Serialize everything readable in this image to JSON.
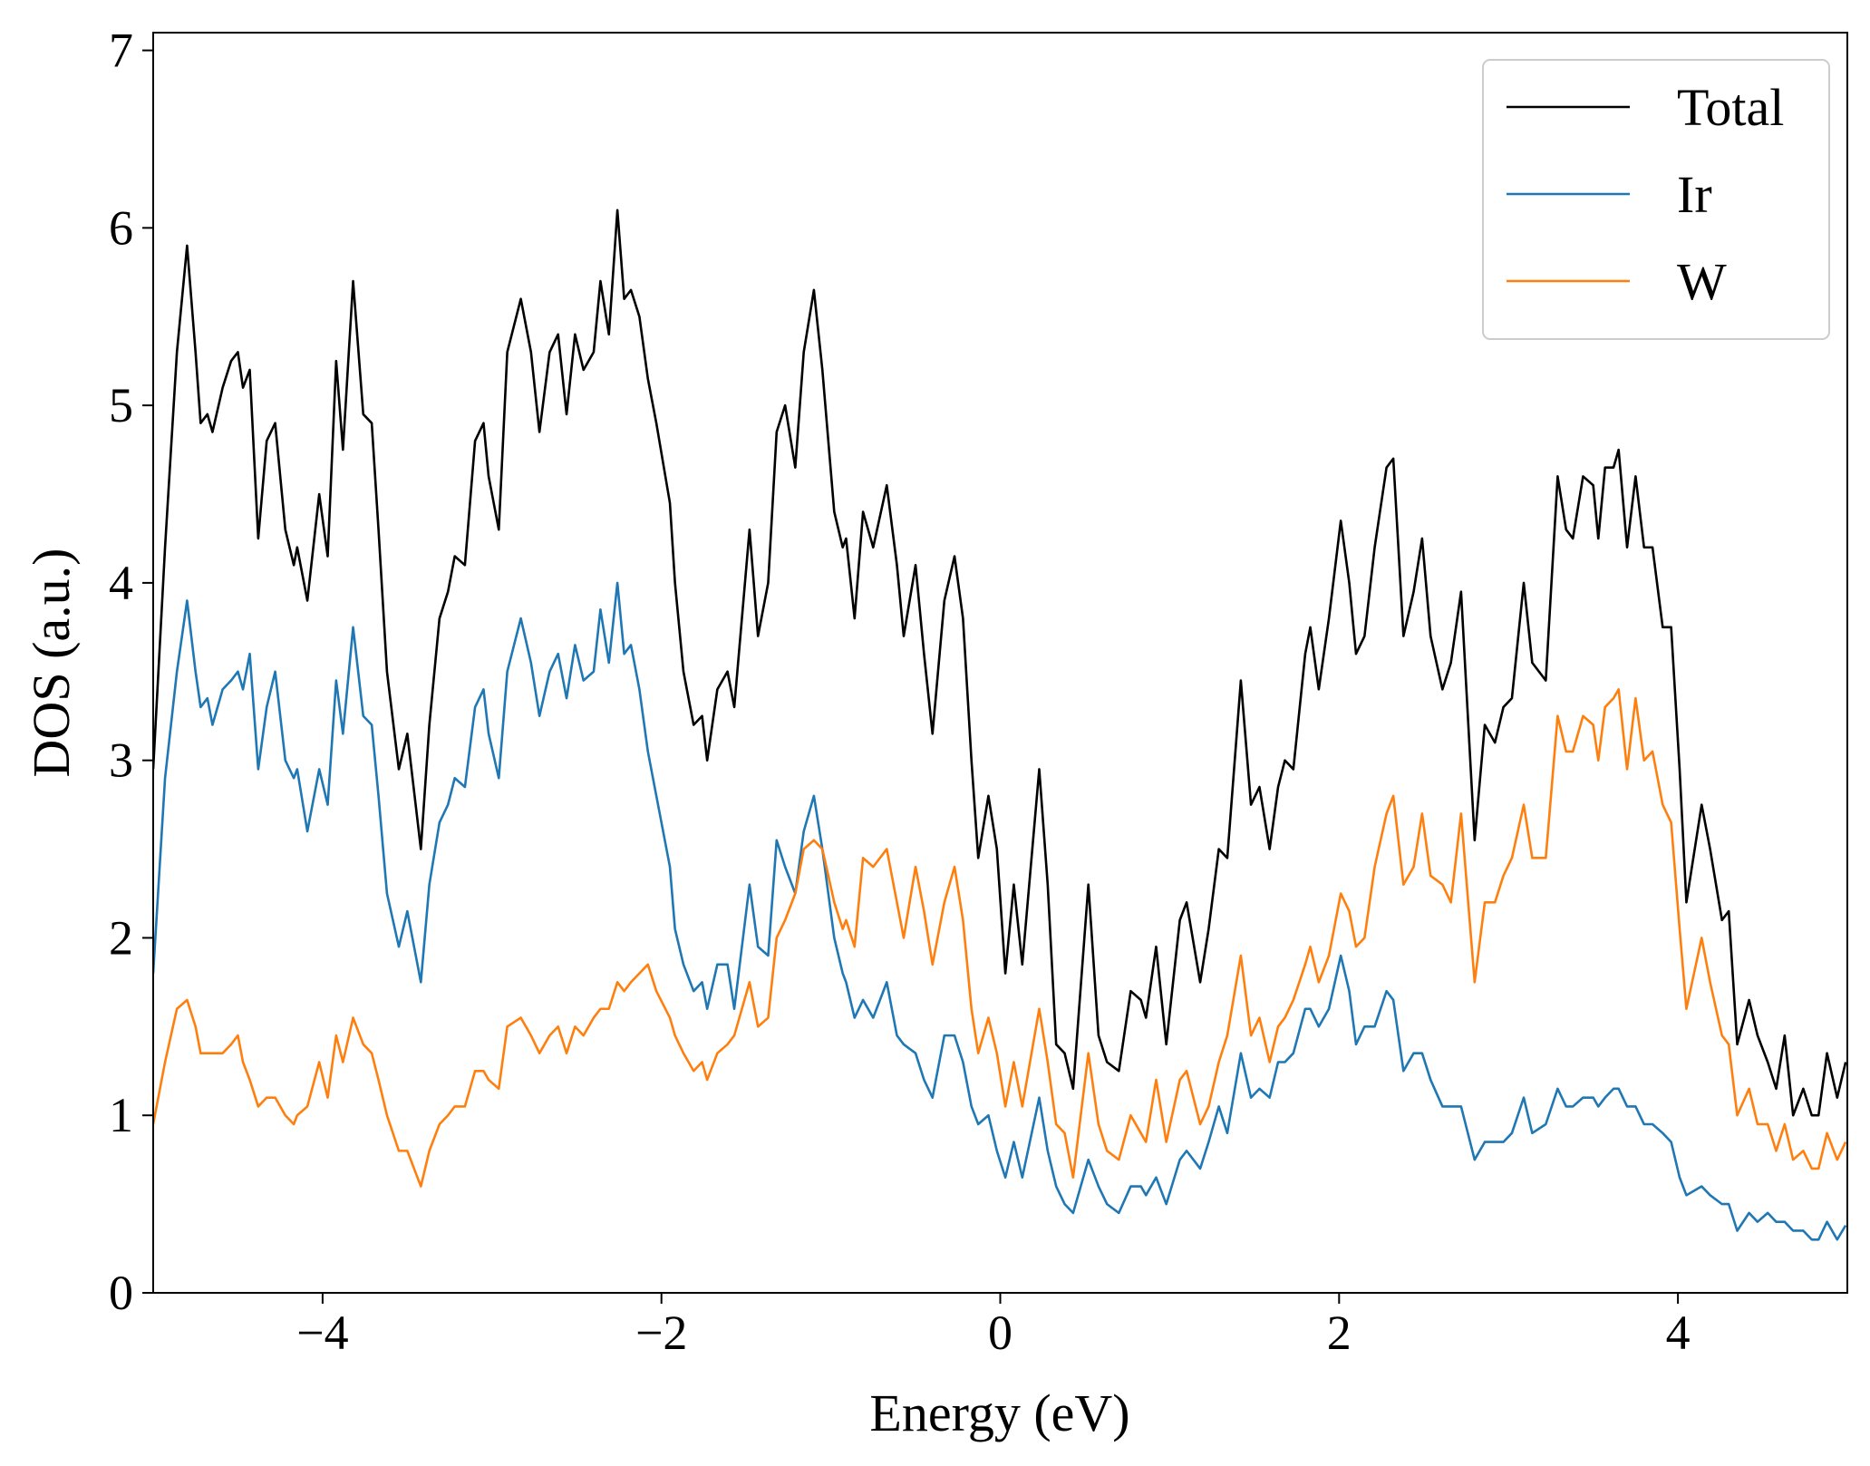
{
  "chart_data": {
    "type": "line",
    "x_label": "Energy (eV)",
    "y_label": "DOS (a.u.)",
    "xlim": [
      -5,
      5
    ],
    "ylim": [
      0,
      7.1
    ],
    "xticks": [
      {
        "value": -4,
        "label": "−4"
      },
      {
        "value": -2,
        "label": "−2"
      },
      0,
      2,
      4
    ],
    "yticks": [
      0,
      1,
      2,
      3,
      4,
      5,
      6,
      7
    ],
    "legend": "upper right",
    "grid": false,
    "x": [
      -5.0,
      -4.93,
      -4.86,
      -4.8,
      -4.75,
      -4.72,
      -4.68,
      -4.65,
      -4.59,
      -4.54,
      -4.5,
      -4.47,
      -4.43,
      -4.38,
      -4.33,
      -4.28,
      -4.22,
      -4.17,
      -4.15,
      -4.09,
      -4.02,
      -3.97,
      -3.92,
      -3.88,
      -3.82,
      -3.76,
      -3.71,
      -3.67,
      -3.62,
      -3.55,
      -3.5,
      -3.42,
      -3.37,
      -3.31,
      -3.26,
      -3.22,
      -3.16,
      -3.1,
      -3.05,
      -3.02,
      -2.96,
      -2.91,
      -2.83,
      -2.77,
      -2.72,
      -2.66,
      -2.61,
      -2.56,
      -2.51,
      -2.46,
      -2.4,
      -2.36,
      -2.31,
      -2.26,
      -2.22,
      -2.18,
      -2.13,
      -2.08,
      -2.03,
      -1.95,
      -1.92,
      -1.87,
      -1.81,
      -1.76,
      -1.73,
      -1.67,
      -1.61,
      -1.57,
      -1.48,
      -1.43,
      -1.37,
      -1.32,
      -1.27,
      -1.21,
      -1.16,
      -1.1,
      -1.05,
      -0.98,
      -0.93,
      -0.91,
      -0.86,
      -0.81,
      -0.75,
      -0.67,
      -0.61,
      -0.57,
      -0.5,
      -0.45,
      -0.4,
      -0.33,
      -0.27,
      -0.22,
      -0.17,
      -0.13,
      -0.07,
      -0.02,
      0.03,
      0.08,
      0.13,
      0.23,
      0.28,
      0.33,
      0.38,
      0.43,
      0.52,
      0.58,
      0.63,
      0.7,
      0.77,
      0.83,
      0.86,
      0.92,
      0.98,
      1.06,
      1.1,
      1.18,
      1.23,
      1.29,
      1.34,
      1.42,
      1.48,
      1.53,
      1.59,
      1.64,
      1.68,
      1.73,
      1.8,
      1.83,
      1.88,
      1.94,
      2.01,
      2.06,
      2.1,
      2.15,
      2.21,
      2.28,
      2.32,
      2.38,
      2.44,
      2.49,
      2.54,
      2.61,
      2.66,
      2.72,
      2.8,
      2.86,
      2.92,
      2.97,
      3.02,
      3.09,
      3.14,
      3.22,
      3.29,
      3.34,
      3.38,
      3.44,
      3.5,
      3.53,
      3.57,
      3.62,
      3.65,
      3.7,
      3.75,
      3.8,
      3.85,
      3.91,
      3.96,
      4.01,
      4.05,
      4.14,
      4.19,
      4.26,
      4.3,
      4.35,
      4.42,
      4.47,
      4.53,
      4.58,
      4.63,
      4.68,
      4.74,
      4.79,
      4.83,
      4.88,
      4.94,
      4.99
    ],
    "series": [
      {
        "name": "Total",
        "color": "#000000",
        "values": [
          2.95,
          4.2,
          5.3,
          5.9,
          5.3,
          4.9,
          4.95,
          4.85,
          5.1,
          5.25,
          5.3,
          5.1,
          5.2,
          4.25,
          4.8,
          4.9,
          4.3,
          4.1,
          4.2,
          3.9,
          4.5,
          4.15,
          5.25,
          4.75,
          5.7,
          4.95,
          4.9,
          4.3,
          3.5,
          2.95,
          3.15,
          2.5,
          3.2,
          3.8,
          3.95,
          4.15,
          4.1,
          4.8,
          4.9,
          4.6,
          4.3,
          5.3,
          5.6,
          5.3,
          4.85,
          5.3,
          5.4,
          4.95,
          5.4,
          5.2,
          5.3,
          5.7,
          5.4,
          6.1,
          5.6,
          5.65,
          5.5,
          5.15,
          4.9,
          4.45,
          4.0,
          3.5,
          3.2,
          3.25,
          3.0,
          3.4,
          3.5,
          3.3,
          4.3,
          3.7,
          4.0,
          4.85,
          5.0,
          4.65,
          5.3,
          5.65,
          5.2,
          4.4,
          4.2,
          4.25,
          3.8,
          4.4,
          4.2,
          4.55,
          4.1,
          3.7,
          4.1,
          3.6,
          3.15,
          3.9,
          4.15,
          3.8,
          3.0,
          2.45,
          2.8,
          2.5,
          1.8,
          2.3,
          1.85,
          2.95,
          2.3,
          1.4,
          1.35,
          1.15,
          2.3,
          1.45,
          1.3,
          1.25,
          1.7,
          1.65,
          1.55,
          1.95,
          1.4,
          2.1,
          2.2,
          1.75,
          2.05,
          2.5,
          2.45,
          3.45,
          2.75,
          2.85,
          2.5,
          2.85,
          3.0,
          2.95,
          3.6,
          3.75,
          3.4,
          3.8,
          4.35,
          4.0,
          3.6,
          3.7,
          4.2,
          4.65,
          4.7,
          3.7,
          3.95,
          4.25,
          3.7,
          3.4,
          3.55,
          3.95,
          2.55,
          3.2,
          3.1,
          3.3,
          3.35,
          4.0,
          3.55,
          3.45,
          4.6,
          4.3,
          4.25,
          4.6,
          4.55,
          4.25,
          4.65,
          4.65,
          4.75,
          4.2,
          4.6,
          4.2,
          4.2,
          3.75,
          3.75,
          2.95,
          2.2,
          2.75,
          2.5,
          2.1,
          2.15,
          1.4,
          1.65,
          1.45,
          1.3,
          1.15,
          1.45,
          1.0,
          1.15,
          1.0,
          1.0,
          1.35,
          1.1,
          1.3
        ]
      },
      {
        "name": "Ir",
        "color": "#1f77b4",
        "values": [
          1.8,
          2.9,
          3.5,
          3.9,
          3.5,
          3.3,
          3.35,
          3.2,
          3.4,
          3.45,
          3.5,
          3.4,
          3.6,
          2.95,
          3.3,
          3.5,
          3.0,
          2.9,
          2.95,
          2.6,
          2.95,
          2.75,
          3.45,
          3.15,
          3.75,
          3.25,
          3.2,
          2.8,
          2.25,
          1.95,
          2.15,
          1.75,
          2.3,
          2.65,
          2.75,
          2.9,
          2.85,
          3.3,
          3.4,
          3.15,
          2.9,
          3.5,
          3.8,
          3.55,
          3.25,
          3.5,
          3.6,
          3.35,
          3.65,
          3.45,
          3.5,
          3.85,
          3.55,
          4.0,
          3.6,
          3.65,
          3.4,
          3.05,
          2.8,
          2.4,
          2.05,
          1.85,
          1.7,
          1.75,
          1.6,
          1.85,
          1.85,
          1.6,
          2.3,
          1.95,
          1.9,
          2.55,
          2.4,
          2.25,
          2.6,
          2.8,
          2.5,
          2.0,
          1.8,
          1.75,
          1.55,
          1.65,
          1.55,
          1.75,
          1.45,
          1.4,
          1.35,
          1.2,
          1.1,
          1.45,
          1.45,
          1.3,
          1.05,
          0.95,
          1.0,
          0.8,
          0.65,
          0.85,
          0.65,
          1.1,
          0.8,
          0.6,
          0.5,
          0.45,
          0.75,
          0.6,
          0.5,
          0.45,
          0.6,
          0.6,
          0.55,
          0.65,
          0.5,
          0.75,
          0.8,
          0.7,
          0.85,
          1.05,
          0.9,
          1.35,
          1.1,
          1.15,
          1.1,
          1.3,
          1.3,
          1.35,
          1.6,
          1.6,
          1.5,
          1.6,
          1.9,
          1.7,
          1.4,
          1.5,
          1.5,
          1.7,
          1.65,
          1.25,
          1.35,
          1.35,
          1.2,
          1.05,
          1.05,
          1.05,
          0.75,
          0.85,
          0.85,
          0.85,
          0.9,
          1.1,
          0.9,
          0.95,
          1.15,
          1.05,
          1.05,
          1.1,
          1.1,
          1.05,
          1.1,
          1.15,
          1.15,
          1.05,
          1.05,
          0.95,
          0.95,
          0.9,
          0.85,
          0.65,
          0.55,
          0.6,
          0.55,
          0.5,
          0.5,
          0.35,
          0.45,
          0.4,
          0.45,
          0.4,
          0.4,
          0.35,
          0.35,
          0.3,
          0.3,
          0.4,
          0.3,
          0.38
        ]
      },
      {
        "name": "W",
        "color": "#ff7f0e",
        "values": [
          0.95,
          1.3,
          1.6,
          1.65,
          1.5,
          1.35,
          1.35,
          1.35,
          1.35,
          1.4,
          1.45,
          1.3,
          1.2,
          1.05,
          1.1,
          1.1,
          1.0,
          0.95,
          1.0,
          1.05,
          1.3,
          1.1,
          1.45,
          1.3,
          1.55,
          1.4,
          1.35,
          1.2,
          1.0,
          0.8,
          0.8,
          0.6,
          0.8,
          0.95,
          1.0,
          1.05,
          1.05,
          1.25,
          1.25,
          1.2,
          1.15,
          1.5,
          1.55,
          1.45,
          1.35,
          1.45,
          1.5,
          1.35,
          1.5,
          1.45,
          1.55,
          1.6,
          1.6,
          1.75,
          1.7,
          1.75,
          1.8,
          1.85,
          1.7,
          1.55,
          1.45,
          1.35,
          1.25,
          1.3,
          1.2,
          1.35,
          1.4,
          1.45,
          1.75,
          1.5,
          1.55,
          2.0,
          2.1,
          2.25,
          2.5,
          2.55,
          2.5,
          2.2,
          2.05,
          2.1,
          1.95,
          2.45,
          2.4,
          2.5,
          2.2,
          2.0,
          2.4,
          2.15,
          1.85,
          2.2,
          2.4,
          2.1,
          1.6,
          1.35,
          1.55,
          1.35,
          1.05,
          1.3,
          1.05,
          1.6,
          1.3,
          0.95,
          0.9,
          0.65,
          1.35,
          0.95,
          0.8,
          0.75,
          1.0,
          0.9,
          0.85,
          1.2,
          0.85,
          1.2,
          1.25,
          0.95,
          1.05,
          1.3,
          1.45,
          1.9,
          1.45,
          1.55,
          1.3,
          1.5,
          1.55,
          1.65,
          1.85,
          1.95,
          1.75,
          1.9,
          2.25,
          2.15,
          1.95,
          2.0,
          2.4,
          2.7,
          2.8,
          2.3,
          2.4,
          2.7,
          2.35,
          2.3,
          2.2,
          2.7,
          1.75,
          2.2,
          2.2,
          2.35,
          2.45,
          2.75,
          2.45,
          2.45,
          3.25,
          3.05,
          3.05,
          3.25,
          3.2,
          3.0,
          3.3,
          3.35,
          3.4,
          2.95,
          3.35,
          3.0,
          3.05,
          2.75,
          2.65,
          2.05,
          1.6,
          2.0,
          1.75,
          1.45,
          1.4,
          1.0,
          1.15,
          0.95,
          0.95,
          0.8,
          0.95,
          0.75,
          0.8,
          0.7,
          0.7,
          0.9,
          0.75,
          0.85
        ]
      }
    ]
  }
}
